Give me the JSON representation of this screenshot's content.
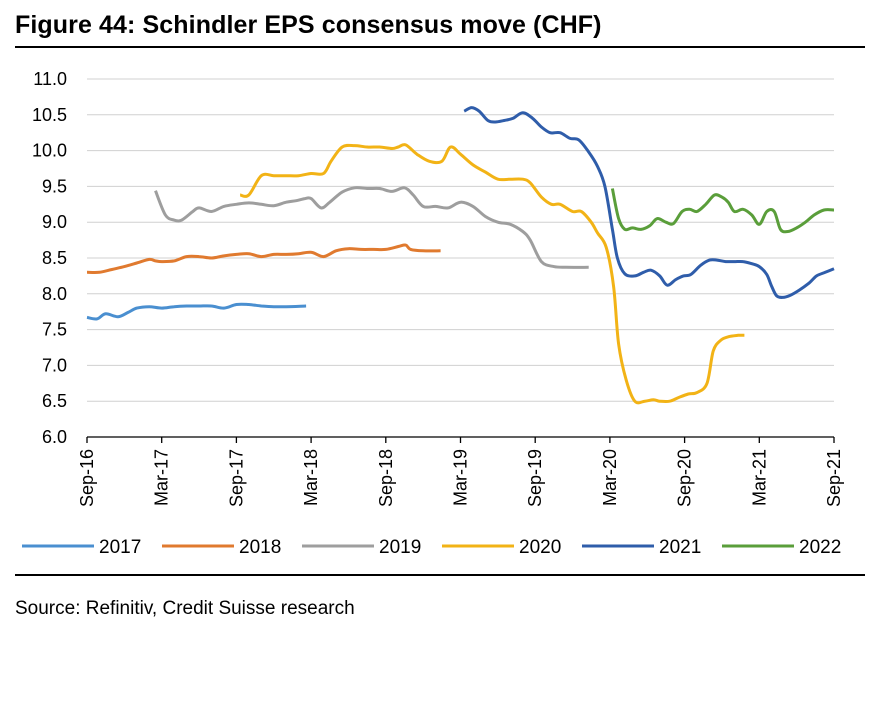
{
  "title": "Figure 44: Schindler EPS consensus move (CHF)",
  "source": "Source: Refinitiv, Credit Suisse research",
  "chart_data": {
    "type": "line",
    "title": "Figure 44: Schindler EPS consensus move (CHF)",
    "xlabel": "",
    "ylabel": "",
    "ylim": [
      6.0,
      11.0
    ],
    "yticks": [
      "6.0",
      "6.5",
      "7.0",
      "7.5",
      "8.0",
      "8.5",
      "9.0",
      "9.5",
      "10.0",
      "10.5",
      "11.0"
    ],
    "x_unit": "months since Sep-16",
    "xlim": [
      0,
      60
    ],
    "xticks": [
      {
        "x": 0,
        "label": "Sep-16"
      },
      {
        "x": 6,
        "label": "Mar-17"
      },
      {
        "x": 12,
        "label": "Sep-17"
      },
      {
        "x": 18,
        "label": "Mar-18"
      },
      {
        "x": 24,
        "label": "Sep-18"
      },
      {
        "x": 30,
        "label": "Mar-19"
      },
      {
        "x": 36,
        "label": "Sep-19"
      },
      {
        "x": 42,
        "label": "Mar-20"
      },
      {
        "x": 48,
        "label": "Sep-20"
      },
      {
        "x": 54,
        "label": "Mar-21"
      },
      {
        "x": 60,
        "label": "Sep-21"
      }
    ],
    "grid": true,
    "legend_position": "bottom",
    "series": [
      {
        "name": "2017",
        "color": "#4a8fd0",
        "x": [
          0,
          0.8,
          1.5,
          2.5,
          3.3,
          4,
          5,
          6,
          7,
          8,
          9,
          10,
          11,
          12,
          13,
          14,
          15,
          16,
          17.6
        ],
        "y": [
          7.67,
          7.65,
          7.72,
          7.68,
          7.74,
          7.8,
          7.82,
          7.8,
          7.82,
          7.83,
          7.83,
          7.83,
          7.8,
          7.85,
          7.85,
          7.83,
          7.82,
          7.82,
          7.83
        ]
      },
      {
        "name": "2018",
        "color": "#e07a2f",
        "x": [
          0,
          1,
          2,
          3,
          4,
          5,
          5.5,
          6,
          7,
          8,
          9,
          10,
          11,
          12,
          13,
          14,
          15,
          16,
          17,
          18,
          19,
          20,
          21,
          22,
          23,
          24,
          25,
          25.6,
          26,
          27,
          28.4
        ],
        "y": [
          8.3,
          8.3,
          8.34,
          8.38,
          8.43,
          8.48,
          8.46,
          8.45,
          8.46,
          8.52,
          8.52,
          8.5,
          8.53,
          8.55,
          8.56,
          8.52,
          8.55,
          8.55,
          8.56,
          8.58,
          8.52,
          8.6,
          8.63,
          8.62,
          8.62,
          8.62,
          8.66,
          8.68,
          8.62,
          8.6,
          8.6
        ]
      },
      {
        "name": "2019",
        "color": "#9e9e9e",
        "x": [
          5.5,
          6.3,
          7,
          7.6,
          8.5,
          9,
          10,
          11,
          12,
          13,
          14,
          15,
          16,
          16.8,
          17.5,
          18,
          18.8,
          19.5,
          20.5,
          21.5,
          22.5,
          23.5,
          24.5,
          25.5,
          26.2,
          27,
          28,
          29,
          30,
          31,
          32,
          33,
          34,
          35,
          35.6,
          36.5,
          37.5,
          38.5,
          40.3
        ],
        "y": [
          9.44,
          9.1,
          9.03,
          9.03,
          9.15,
          9.2,
          9.15,
          9.22,
          9.25,
          9.27,
          9.25,
          9.23,
          9.28,
          9.3,
          9.33,
          9.33,
          9.2,
          9.28,
          9.42,
          9.48,
          9.47,
          9.47,
          9.43,
          9.48,
          9.38,
          9.22,
          9.22,
          9.2,
          9.28,
          9.22,
          9.08,
          9.0,
          8.97,
          8.87,
          8.75,
          8.45,
          8.38,
          8.37,
          8.37
        ]
      },
      {
        "name": "2020",
        "color": "#f2b316",
        "x": [
          12.3,
          13,
          14,
          15,
          16,
          17,
          18,
          19,
          19.6,
          20.5,
          21.5,
          22.5,
          23.5,
          24.5,
          25,
          25.6,
          26.5,
          27.5,
          28.5,
          29.2,
          30,
          31,
          32,
          33,
          34,
          35,
          35.6,
          36.5,
          37.3,
          38,
          39,
          39.7,
          40.5,
          41,
          41.7,
          42.3,
          42.7,
          43.3,
          44,
          44.8,
          45.5,
          46,
          46.8,
          47.5,
          48.3,
          49,
          49.8,
          50.3,
          50.9,
          51.5,
          52.3,
          52.8
        ],
        "y": [
          9.38,
          9.38,
          9.65,
          9.65,
          9.65,
          9.65,
          9.68,
          9.68,
          9.85,
          10.05,
          10.07,
          10.05,
          10.05,
          10.03,
          10.05,
          10.08,
          9.95,
          9.85,
          9.85,
          10.05,
          9.95,
          9.8,
          9.7,
          9.6,
          9.6,
          9.6,
          9.55,
          9.35,
          9.25,
          9.25,
          9.15,
          9.15,
          9.0,
          8.85,
          8.65,
          8.1,
          7.3,
          6.8,
          6.5,
          6.5,
          6.52,
          6.5,
          6.5,
          6.55,
          6.6,
          6.62,
          6.75,
          7.2,
          7.35,
          7.4,
          7.42,
          7.42
        ]
      },
      {
        "name": "2021",
        "color": "#2f5daa",
        "x": [
          30.3,
          30.9,
          31.5,
          32.2,
          32.8,
          33.5,
          34.2,
          35,
          35.8,
          36.5,
          37.2,
          38,
          38.8,
          39.5,
          40.3,
          41,
          41.6,
          42.2,
          42.6,
          43.2,
          44,
          44.7,
          45.3,
          46,
          46.6,
          47.3,
          47.9,
          48.5,
          49.3,
          50,
          50.6,
          51.3,
          52,
          52.7,
          53.4,
          54,
          54.6,
          55,
          55.4,
          55.9,
          56.5,
          57.2,
          58,
          58.6,
          59.3,
          60
        ],
        "y": [
          10.55,
          10.6,
          10.55,
          10.42,
          10.4,
          10.42,
          10.45,
          10.53,
          10.45,
          10.33,
          10.25,
          10.25,
          10.17,
          10.15,
          9.98,
          9.78,
          9.5,
          8.9,
          8.5,
          8.28,
          8.25,
          8.3,
          8.33,
          8.25,
          8.12,
          8.2,
          8.25,
          8.27,
          8.4,
          8.47,
          8.47,
          8.45,
          8.45,
          8.45,
          8.42,
          8.38,
          8.27,
          8.1,
          7.97,
          7.95,
          7.98,
          8.05,
          8.15,
          8.25,
          8.3,
          8.35
        ]
      },
      {
        "name": "2022",
        "color": "#5a9e3a",
        "x": [
          42.2,
          42.7,
          43.2,
          43.8,
          44.5,
          45.2,
          45.8,
          46.5,
          47.1,
          47.8,
          48.4,
          49,
          49.7,
          50.4,
          51,
          51.5,
          52,
          52.7,
          53.4,
          54,
          54.6,
          55.2,
          55.7,
          56.3,
          57,
          57.7,
          58.4,
          59.2,
          60
        ],
        "y": [
          9.47,
          9.05,
          8.9,
          8.92,
          8.9,
          8.95,
          9.05,
          9.0,
          8.98,
          9.15,
          9.18,
          9.15,
          9.25,
          9.38,
          9.35,
          9.28,
          9.15,
          9.18,
          9.1,
          8.97,
          9.15,
          9.15,
          8.9,
          8.87,
          8.92,
          9.0,
          9.1,
          9.17,
          9.17
        ]
      }
    ]
  }
}
